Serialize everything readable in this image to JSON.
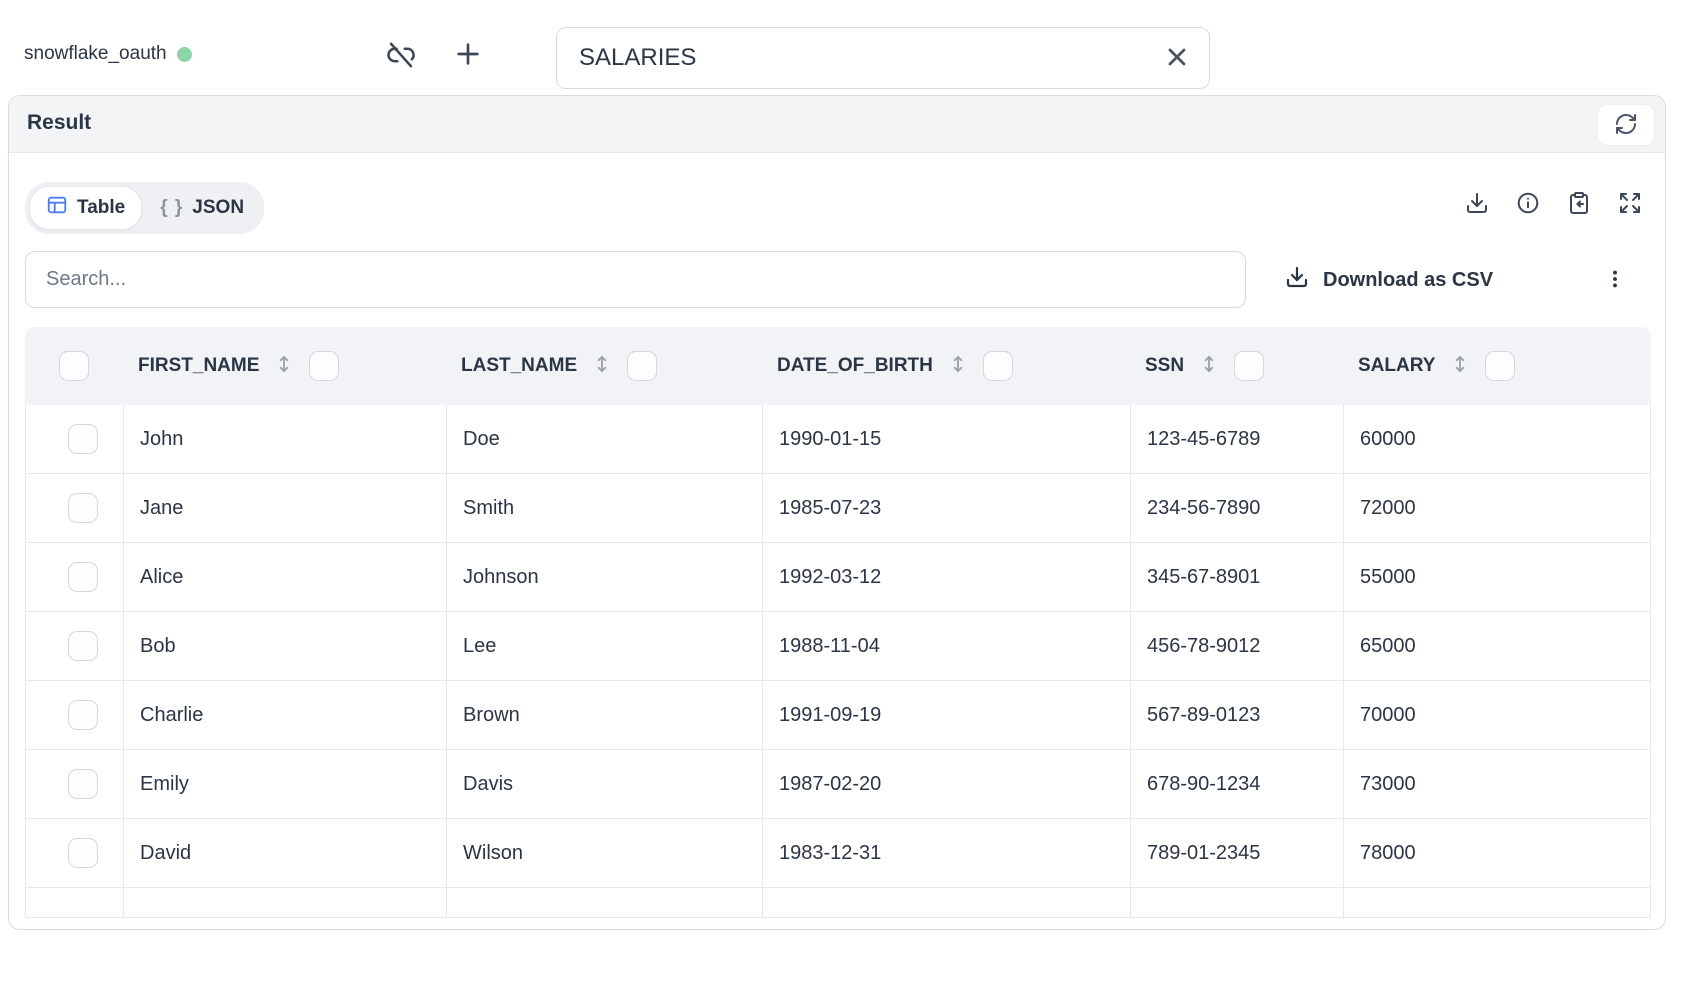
{
  "topbar": {
    "connection_name": "snowflake_oauth",
    "connection_status": "connected",
    "query_input_value": "SALARIES"
  },
  "result_panel": {
    "title": "Result",
    "view_tabs": [
      {
        "label": "Table",
        "active": true
      },
      {
        "label": "JSON",
        "active": false
      }
    ],
    "json_braces_glyph": "{ }",
    "search_placeholder": "Search...",
    "download_csv_label": "Download as CSV"
  },
  "table": {
    "columns": [
      "FIRST_NAME",
      "LAST_NAME",
      "DATE_OF_BIRTH",
      "SSN",
      "SALARY"
    ],
    "rows": [
      [
        "John",
        "Doe",
        "1990-01-15",
        "123-45-6789",
        "60000"
      ],
      [
        "Jane",
        "Smith",
        "1985-07-23",
        "234-56-7890",
        "72000"
      ],
      [
        "Alice",
        "Johnson",
        "1992-03-12",
        "345-67-8901",
        "55000"
      ],
      [
        "Bob",
        "Lee",
        "1988-11-04",
        "456-78-9012",
        "65000"
      ],
      [
        "Charlie",
        "Brown",
        "1991-09-19",
        "567-89-0123",
        "70000"
      ],
      [
        "Emily",
        "Davis",
        "1987-02-20",
        "678-90-1234",
        "73000"
      ],
      [
        "David",
        "Wilson",
        "1983-12-31",
        "789-01-2345",
        "78000"
      ]
    ]
  },
  "colors": {
    "text_primary": "#2b3544",
    "status_green": "#8fd3a8",
    "accent_blue": "#4d7df2",
    "header_bg": "#f1f3f6",
    "bar_bg": "#f2f4f6",
    "border": "#d8dce2",
    "row_border": "#e7e9ec"
  }
}
